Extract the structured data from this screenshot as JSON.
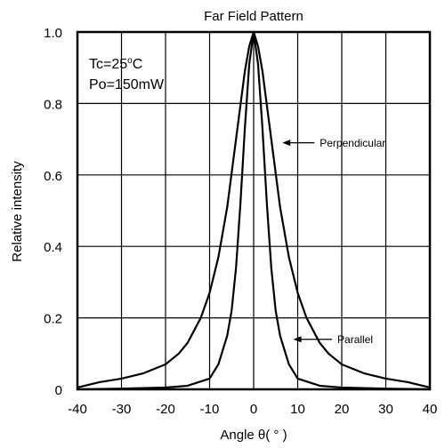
{
  "chart_data": {
    "type": "line",
    "title": "Far Field Pattern",
    "xlabel": "Angle θ( ° )",
    "ylabel": "Relative intensity",
    "xlim": [
      -40,
      40
    ],
    "ylim": [
      0,
      1.0
    ],
    "x_ticks": [
      -40,
      -30,
      -20,
      -10,
      0,
      10,
      20,
      30,
      40
    ],
    "y_ticks": [
      0,
      0.2,
      0.4,
      0.6,
      0.8,
      1.0
    ],
    "y_tick_labels": [
      "0",
      "0.2",
      "0.4",
      "0.6",
      "0.8",
      "1.0"
    ],
    "grid": true,
    "conditions": {
      "tc_prefix": "Tc=25",
      "tc_sup": "o",
      "tc_suffix": "C",
      "po": "Po=150mW"
    },
    "series": [
      {
        "name": "Perpendicular",
        "x": [
          -40,
          -35,
          -30,
          -25,
          -20,
          -17,
          -15,
          -12,
          -10,
          -8,
          -6,
          -4,
          -2,
          -1,
          0,
          1,
          2,
          4,
          6,
          8,
          10,
          12,
          15,
          17,
          20,
          25,
          30,
          35,
          40
        ],
        "y": [
          0.005,
          0.02,
          0.03,
          0.045,
          0.07,
          0.1,
          0.13,
          0.2,
          0.27,
          0.37,
          0.51,
          0.7,
          0.89,
          0.96,
          1.0,
          0.96,
          0.89,
          0.7,
          0.51,
          0.37,
          0.27,
          0.2,
          0.13,
          0.1,
          0.07,
          0.045,
          0.03,
          0.02,
          0.005
        ]
      },
      {
        "name": "Parallel",
        "x": [
          -40,
          -30,
          -20,
          -15,
          -10,
          -8,
          -6,
          -5,
          -4,
          -3,
          -2,
          -1,
          0,
          1,
          2,
          3,
          4,
          5,
          6,
          8,
          10,
          15,
          20,
          30,
          40
        ],
        "y": [
          0.0,
          0.002,
          0.005,
          0.01,
          0.03,
          0.07,
          0.15,
          0.22,
          0.34,
          0.52,
          0.73,
          0.91,
          1.0,
          0.91,
          0.73,
          0.52,
          0.34,
          0.22,
          0.15,
          0.07,
          0.03,
          0.01,
          0.005,
          0.002,
          0.0
        ]
      }
    ],
    "annotations": [
      {
        "text": "Perpendicular",
        "series": "Perpendicular",
        "arrow_to": [
          6.5,
          0.69
        ],
        "text_at": [
          15,
          0.69
        ]
      },
      {
        "text": "Parallel",
        "series": "Parallel",
        "arrow_to": [
          9,
          0.14
        ],
        "text_at": [
          19,
          0.14
        ]
      }
    ]
  }
}
